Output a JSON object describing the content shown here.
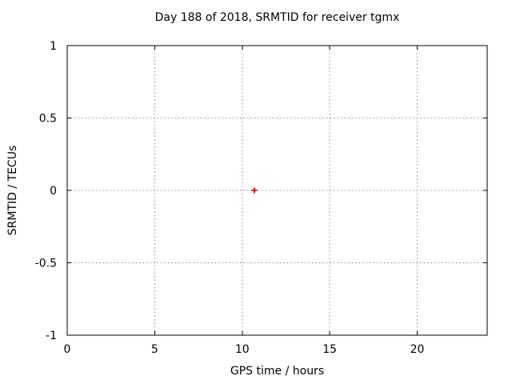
{
  "chart_data": {
    "type": "scatter",
    "title": "Day 188 of 2018, SRMTID for receiver tgmx",
    "xlabel": "GPS time / hours",
    "ylabel": "SRMTID / TECUs",
    "xlim": [
      0,
      24
    ],
    "ylim": [
      -1,
      1
    ],
    "xticks": [
      0,
      5,
      10,
      15,
      20
    ],
    "xtick_labels": [
      "0",
      "5",
      "10",
      "15",
      "20"
    ],
    "yticks": [
      -1,
      -0.5,
      0,
      0.5,
      1
    ],
    "ytick_labels": [
      "-1",
      "-0.5",
      "0",
      "0.5",
      "1"
    ],
    "grid": true,
    "legend": "none",
    "series": [
      {
        "name": "SRMTID",
        "marker": "plus",
        "color": "#ff0000",
        "points": [
          {
            "x": 10.7,
            "y": 0.0
          }
        ]
      }
    ],
    "colors": {
      "background": "#ffffff",
      "border": "#000000",
      "grid": "#8e8e8e",
      "text": "#000000",
      "marker": "#ff0000"
    }
  }
}
